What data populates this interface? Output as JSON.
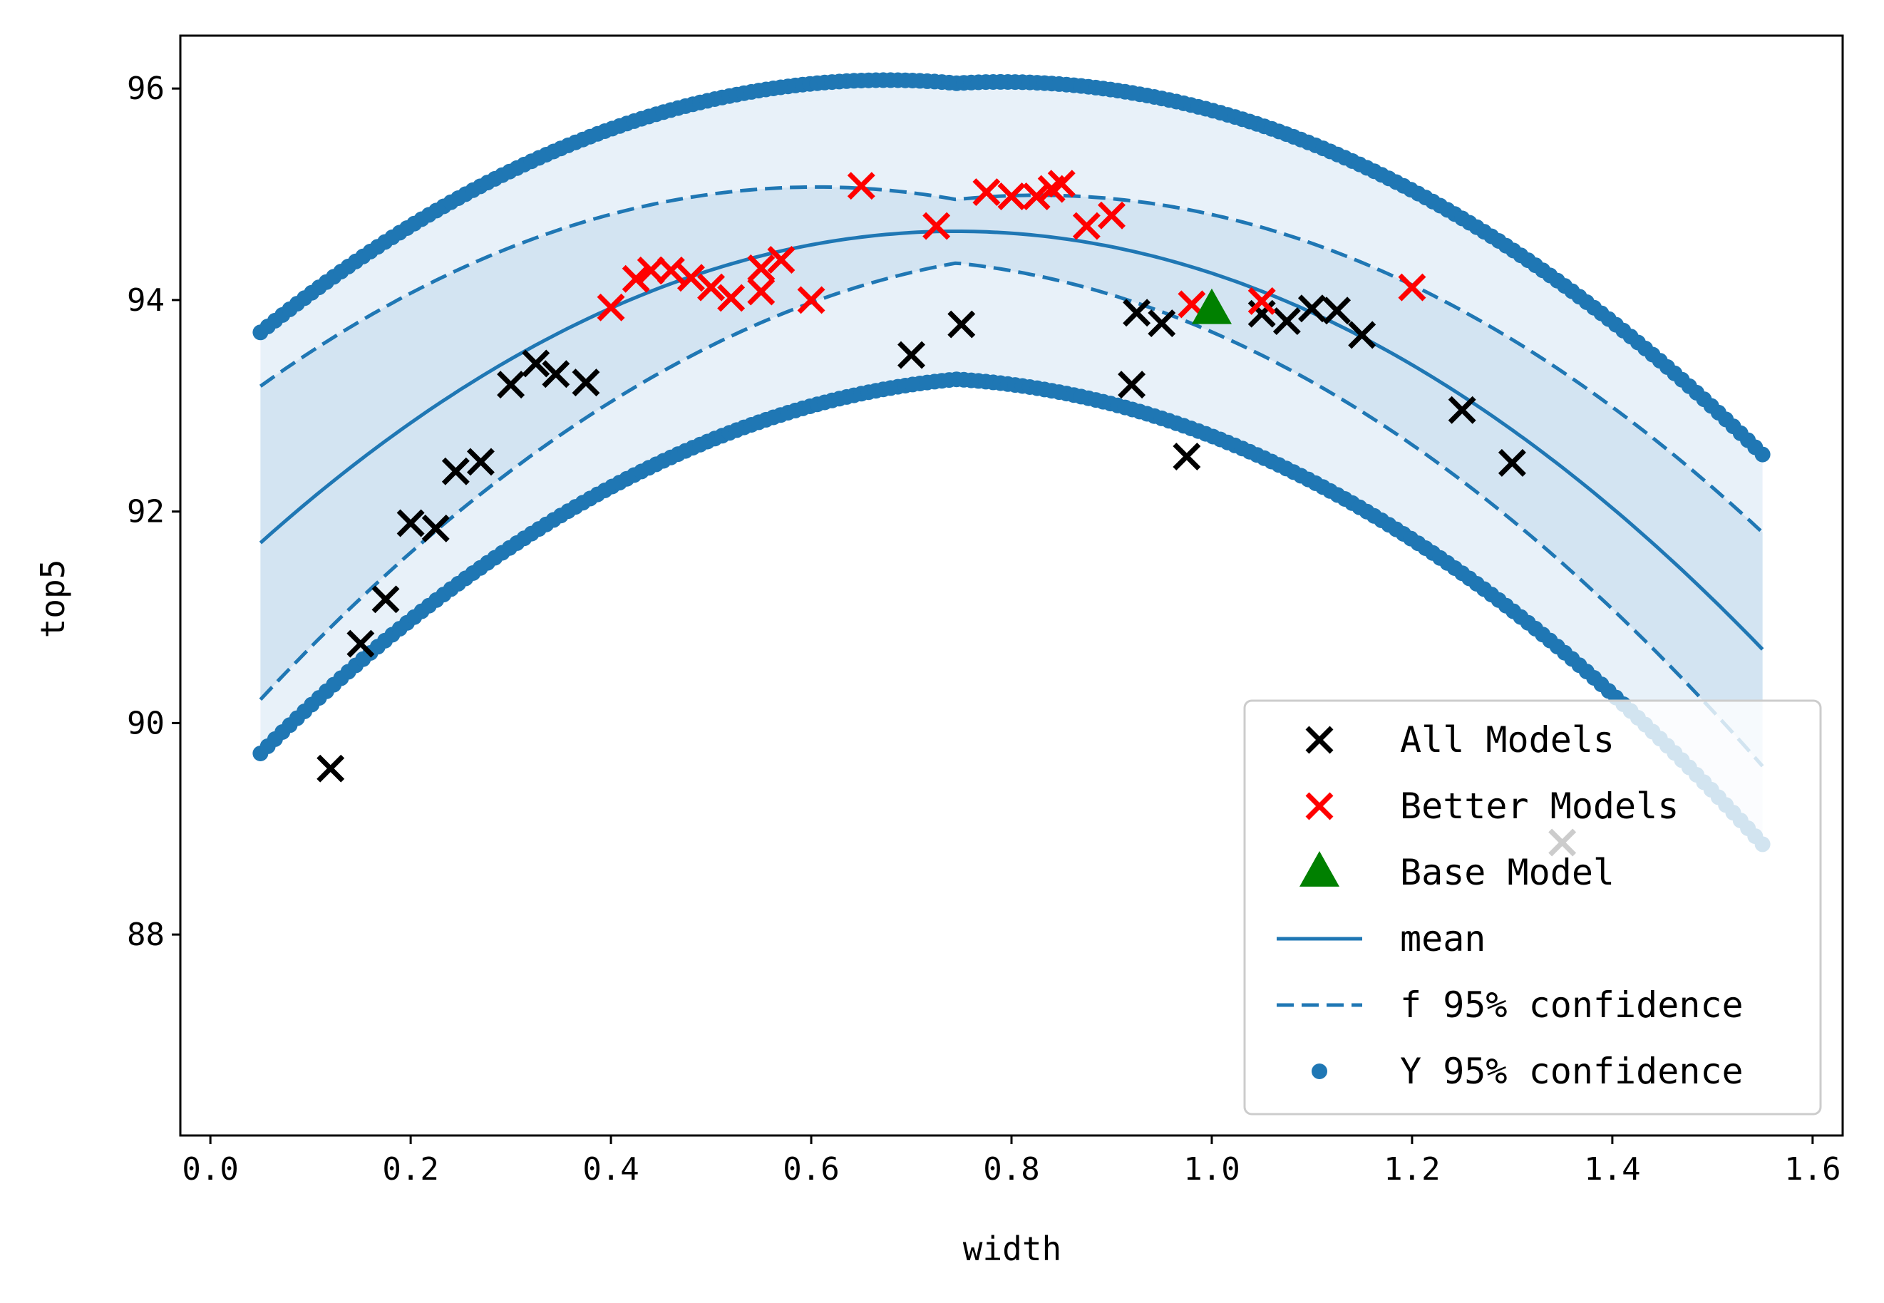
{
  "chart_data": {
    "type": "scatter",
    "title": "",
    "xlabel": "width",
    "ylabel": "top5",
    "xlim": [
      -0.03,
      1.63
    ],
    "ylim": [
      86.1,
      96.5
    ],
    "xticks": [
      0.0,
      0.2,
      0.4,
      0.6,
      0.8,
      1.0,
      1.2,
      1.4,
      1.6
    ],
    "xtick_labels": [
      "0.0",
      "0.2",
      "0.4",
      "0.6",
      "0.8",
      "1.0",
      "1.2",
      "1.4",
      "1.6"
    ],
    "yticks": [
      88,
      90,
      92,
      94,
      96
    ],
    "ytick_labels": [
      "88",
      "90",
      "92",
      "94",
      "96"
    ],
    "grid": false,
    "legend_position": "lower-right",
    "colors": {
      "all_models": "#000000",
      "better_models": "#ff0000",
      "base_model": "#008000",
      "curves": "#1f77b4",
      "band_outer": "#e8f1f9",
      "band_inner": "#d3e4f2"
    },
    "legend": [
      {
        "label": "All Models",
        "marker": "x",
        "color": "#000000"
      },
      {
        "label": "Better Models",
        "marker": "x",
        "color": "#ff0000"
      },
      {
        "label": "Base Model",
        "marker": "triangle",
        "color": "#008000"
      },
      {
        "label": "mean",
        "marker": "line",
        "color": "#1f77b4"
      },
      {
        "label": "f 95% confidence",
        "marker": "dashed",
        "color": "#1f77b4"
      },
      {
        "label": "Y 95% confidence",
        "marker": "dot",
        "color": "#1f77b4"
      }
    ],
    "curve_model": {
      "x_range": [
        0.05,
        1.55
      ],
      "mean": {
        "vertex_x": 0.745,
        "vertex_y": 94.65,
        "curvature": -12.2
      },
      "f_confidence_halfwidth": {
        "center": 0.3,
        "min": 0.3,
        "left_slope": 1.7,
        "right_slope": 1.0
      },
      "y_confidence_halfwidth": {
        "center": 1.4,
        "min": 1.4,
        "left_slope": 0.85,
        "right_slope": 0.55
      }
    },
    "series": [
      {
        "name": "All Models",
        "marker": "x",
        "color": "#000000",
        "points": [
          [
            0.12,
            89.57
          ],
          [
            0.15,
            90.75
          ],
          [
            0.175,
            91.17
          ],
          [
            0.2,
            91.89
          ],
          [
            0.225,
            91.84
          ],
          [
            0.245,
            92.38
          ],
          [
            0.27,
            92.47
          ],
          [
            0.3,
            93.2
          ],
          [
            0.325,
            93.4
          ],
          [
            0.345,
            93.3
          ],
          [
            0.375,
            93.22
          ],
          [
            0.7,
            93.48
          ],
          [
            0.75,
            93.77
          ],
          [
            0.92,
            93.2
          ],
          [
            0.925,
            93.88
          ],
          [
            0.95,
            93.78
          ],
          [
            0.975,
            92.52
          ],
          [
            1.05,
            93.87
          ],
          [
            1.075,
            93.8
          ],
          [
            1.1,
            93.92
          ],
          [
            1.125,
            93.9
          ],
          [
            1.15,
            93.67
          ],
          [
            1.25,
            92.96
          ],
          [
            1.3,
            92.46
          ],
          [
            1.35,
            88.87
          ]
        ]
      },
      {
        "name": "Better Models",
        "marker": "x",
        "color": "#ff0000",
        "points": [
          [
            0.4,
            93.93
          ],
          [
            0.425,
            94.2
          ],
          [
            0.44,
            94.28
          ],
          [
            0.46,
            94.28
          ],
          [
            0.48,
            94.21
          ],
          [
            0.5,
            94.12
          ],
          [
            0.52,
            94.02
          ],
          [
            0.55,
            94.08
          ],
          [
            0.55,
            94.3
          ],
          [
            0.57,
            94.38
          ],
          [
            0.6,
            94.0
          ],
          [
            0.65,
            95.08
          ],
          [
            0.725,
            94.7
          ],
          [
            0.775,
            95.02
          ],
          [
            0.8,
            94.98
          ],
          [
            0.825,
            94.98
          ],
          [
            0.84,
            95.05
          ],
          [
            0.85,
            95.1
          ],
          [
            0.875,
            94.7
          ],
          [
            0.9,
            94.8
          ],
          [
            0.98,
            93.96
          ],
          [
            1.05,
            93.99
          ],
          [
            1.2,
            94.12
          ]
        ]
      },
      {
        "name": "Base Model",
        "marker": "triangle",
        "color": "#008000",
        "points": [
          [
            1.0,
            93.92
          ]
        ]
      }
    ]
  }
}
